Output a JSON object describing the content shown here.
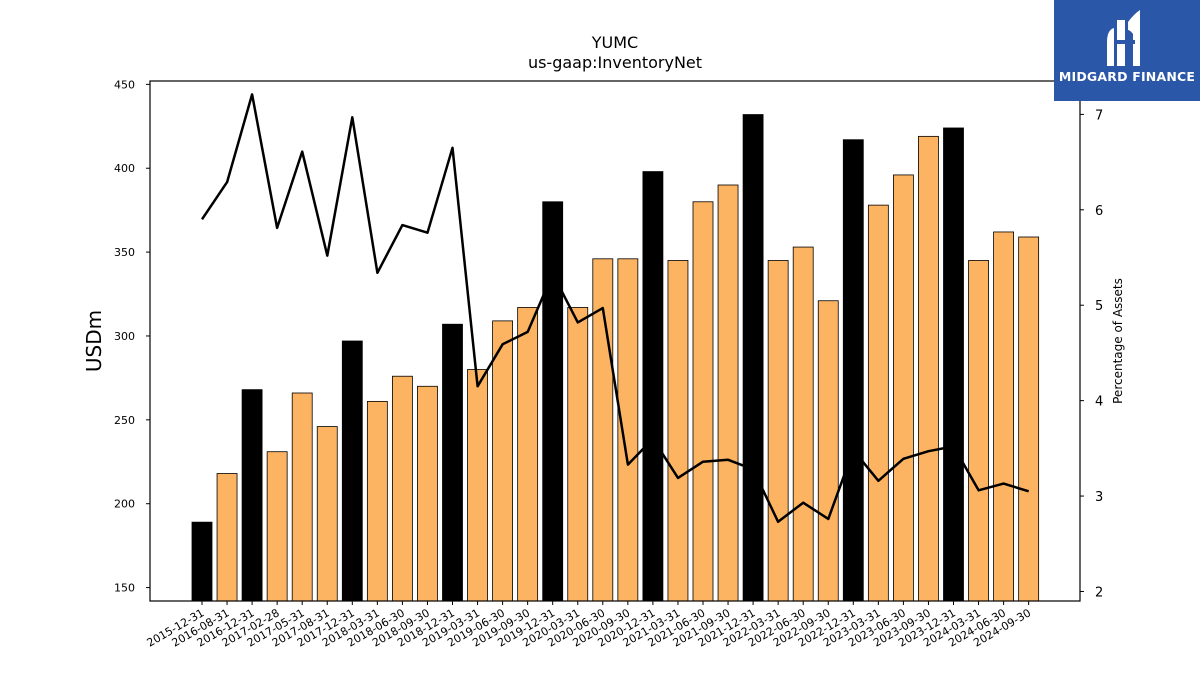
{
  "chart_data": {
    "type": "bar",
    "title": "YUMC",
    "subtitle": "us-gaap:InventoryNet",
    "ylabel": "USDm",
    "y2label": "Percentage of Assets",
    "ylim": [
      142,
      452
    ],
    "y2lim": [
      1.9,
      7.35
    ],
    "yticks": [
      150,
      200,
      250,
      300,
      350,
      400,
      450
    ],
    "y2ticks": [
      2,
      3,
      4,
      5,
      6,
      7
    ],
    "categories": [
      "2015-12-31",
      "2016-08-31",
      "2016-12-31",
      "2017-02-28",
      "2017-05-31",
      "2017-08-31",
      "2017-12-31",
      "2018-03-31",
      "2018-06-30",
      "2018-09-30",
      "2018-12-31",
      "2019-03-31",
      "2019-06-30",
      "2019-09-30",
      "2019-12-31",
      "2020-03-31",
      "2020-06-30",
      "2020-09-30",
      "2020-12-31",
      "2021-03-31",
      "2021-06-30",
      "2021-09-30",
      "2021-12-31",
      "2022-03-31",
      "2022-06-30",
      "2022-09-30",
      "2022-12-31",
      "2023-03-31",
      "2023-06-30",
      "2023-09-30",
      "2023-12-31",
      "2024-03-31",
      "2024-06-30",
      "2024-09-30"
    ],
    "series": [
      {
        "type": "bar",
        "values": [
          189,
          218,
          268,
          231,
          266,
          246,
          297,
          261,
          276,
          270,
          307,
          280,
          309,
          317,
          380,
          317,
          346,
          346,
          398,
          345,
          380,
          390,
          432,
          345,
          353,
          321,
          417,
          378,
          396,
          419,
          424,
          345,
          362,
          359
        ],
        "highlight": [
          true,
          false,
          true,
          false,
          false,
          false,
          true,
          false,
          false,
          false,
          true,
          false,
          false,
          false,
          true,
          false,
          false,
          false,
          true,
          false,
          false,
          false,
          true,
          false,
          false,
          false,
          true,
          false,
          false,
          false,
          true,
          false,
          false,
          false
        ]
      },
      {
        "type": "line",
        "axis": "secondary",
        "values": [
          5.9,
          6.29,
          7.21,
          5.81,
          6.61,
          5.52,
          6.97,
          5.34,
          5.84,
          5.76,
          6.65,
          4.15,
          4.59,
          4.72,
          5.33,
          4.82,
          4.97,
          3.33,
          3.6,
          3.19,
          3.36,
          3.38,
          3.28,
          2.73,
          2.93,
          2.76,
          3.48,
          3.16,
          3.39,
          3.47,
          3.52,
          3.06,
          3.13,
          3.05
        ]
      }
    ],
    "colors": {
      "bar": "#fdb462",
      "highlight_bar": "#000000",
      "line": "#000000"
    },
    "grid": false
  },
  "logo": {
    "name": "midgard-finance-logo",
    "text": "MIDGARD FINANCE"
  }
}
